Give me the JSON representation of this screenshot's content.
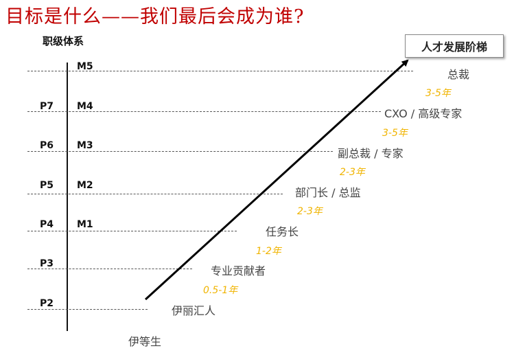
{
  "title": "目标是什么——我们最后会成为谁?",
  "axis_title": "职级体系",
  "ladder_label": "人才发展阶梯",
  "levels": {
    "m5": "M5",
    "p7": "P7",
    "m4": "M4",
    "p6": "P6",
    "m3": "M3",
    "p5": "P5",
    "m2": "M2",
    "p4": "P4",
    "m1": "M1",
    "p3": "P3",
    "p2": "P2"
  },
  "roles": [
    "总裁",
    "CXO / 高级专家",
    "副总裁 / 专家",
    "部门长 / 总监",
    "任务长",
    "专业贡献者",
    "伊丽汇人",
    "伊等生"
  ],
  "durations": [
    "3-5年",
    "3-5年",
    "2-3年",
    "2-3年",
    "1-2年",
    "0.5-1年"
  ],
  "colors": {
    "title": "#c00000",
    "duration": "#f0b400",
    "arrow": "#000000"
  }
}
